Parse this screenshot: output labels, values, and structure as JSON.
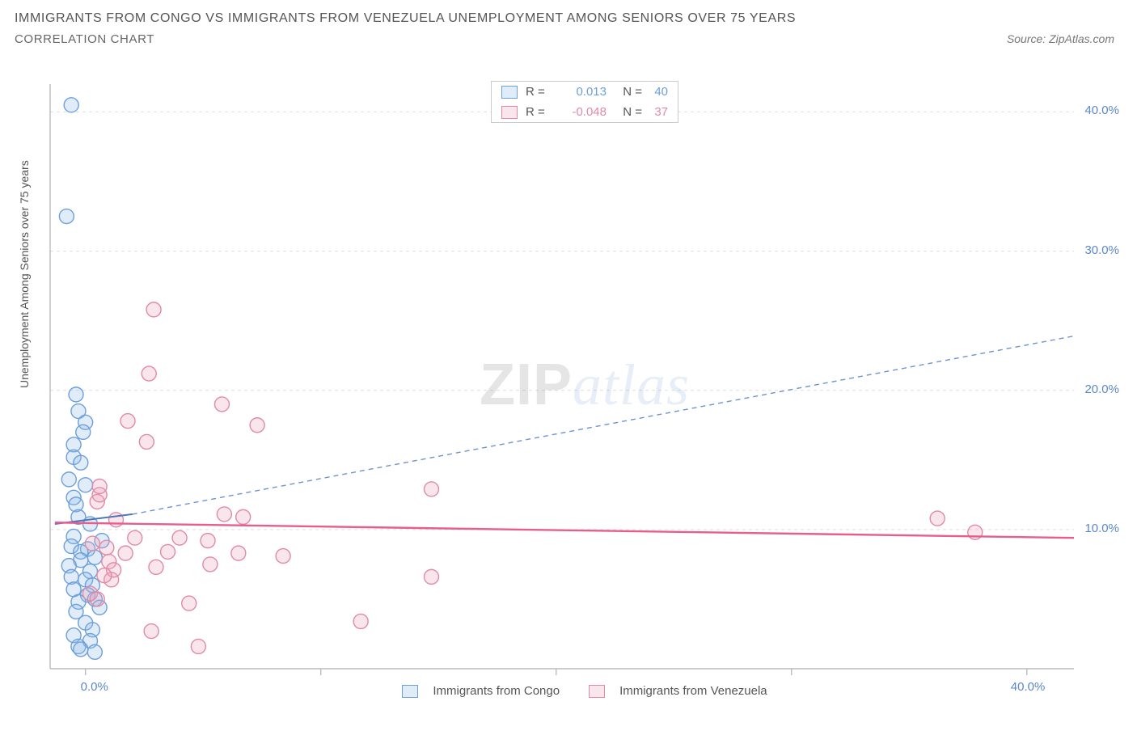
{
  "title_line1": "IMMIGRANTS FROM CONGO VS IMMIGRANTS FROM VENEZUELA UNEMPLOYMENT AMONG SENIORS OVER 75 YEARS",
  "title_line2": "CORRELATION CHART",
  "source_label": "Source: ZipAtlas.com",
  "ylabel": "Unemployment Among Seniors over 75 years",
  "watermark_a": "ZIP",
  "watermark_b": "atlas",
  "chart": {
    "type": "scatter",
    "xlim": [
      -1.5,
      42
    ],
    "ylim": [
      0,
      42
    ],
    "x_ticks": [
      0,
      10,
      20,
      30,
      40
    ],
    "y_ticks": [
      10,
      20,
      30,
      40
    ],
    "x_tick_label_0": "0.0%",
    "x_tick_label_40": "40.0%",
    "y_tick_labels": [
      "10.0%",
      "20.0%",
      "30.0%",
      "40.0%"
    ],
    "grid_color": "#dddddd",
    "axis_color": "#bbbbbb",
    "tick_color": "#bbbbbb",
    "background_color": "#ffffff",
    "ylabel_color": "#555555",
    "xtick_label_color": "#5b88c9",
    "ytick_label_color": "#5b88c9",
    "marker_radius": 9,
    "marker_stroke_width": 1.4,
    "series": [
      {
        "name": "Immigrants from Congo",
        "legend_label": "Immigrants from Congo",
        "color_stroke": "#6d9fdc",
        "color_fill": "rgba(145,185,230,0.28)",
        "R_label": "R =",
        "R_value": "0.013",
        "N_label": "N =",
        "N_value": "40",
        "trend": {
          "x1": -1.3,
          "y1": 10.4,
          "x2": 2.0,
          "y2": 11.1,
          "stroke": "#4b77b8",
          "width": 2.0,
          "dash": ""
        },
        "trend_ext": {
          "x1": 2.0,
          "y1": 11.1,
          "x2": 42,
          "y2": 23.9,
          "stroke": "#6d95c8",
          "width": 1.4,
          "dash": "6 5"
        },
        "points": [
          {
            "x": -0.6,
            "y": 40.5
          },
          {
            "x": -0.8,
            "y": 32.5
          },
          {
            "x": -0.4,
            "y": 19.7
          },
          {
            "x": -0.3,
            "y": 18.5
          },
          {
            "x": 0.0,
            "y": 17.7
          },
          {
            "x": -0.1,
            "y": 17.0
          },
          {
            "x": -0.5,
            "y": 16.1
          },
          {
            "x": -0.5,
            "y": 15.2
          },
          {
            "x": -0.2,
            "y": 14.8
          },
          {
            "x": -0.7,
            "y": 13.6
          },
          {
            "x": 0.0,
            "y": 13.2
          },
          {
            "x": -0.5,
            "y": 12.3
          },
          {
            "x": -0.4,
            "y": 11.8
          },
          {
            "x": -0.3,
            "y": 10.9
          },
          {
            "x": 0.2,
            "y": 10.4
          },
          {
            "x": -0.5,
            "y": 9.5
          },
          {
            "x": 0.7,
            "y": 9.2
          },
          {
            "x": -0.6,
            "y": 8.8
          },
          {
            "x": 0.1,
            "y": 8.6
          },
          {
            "x": -0.2,
            "y": 8.4
          },
          {
            "x": 0.4,
            "y": 8.0
          },
          {
            "x": -0.2,
            "y": 7.8
          },
          {
            "x": -0.7,
            "y": 7.4
          },
          {
            "x": 0.2,
            "y": 7.0
          },
          {
            "x": -0.6,
            "y": 6.6
          },
          {
            "x": 0.0,
            "y": 6.4
          },
          {
            "x": 0.3,
            "y": 6.0
          },
          {
            "x": -0.5,
            "y": 5.7
          },
          {
            "x": 0.1,
            "y": 5.3
          },
          {
            "x": 0.4,
            "y": 5.0
          },
          {
            "x": -0.3,
            "y": 4.8
          },
          {
            "x": 0.6,
            "y": 4.4
          },
          {
            "x": -0.4,
            "y": 4.1
          },
          {
            "x": 0.0,
            "y": 3.3
          },
          {
            "x": 0.3,
            "y": 2.8
          },
          {
            "x": -0.5,
            "y": 2.4
          },
          {
            "x": 0.2,
            "y": 2.0
          },
          {
            "x": -0.3,
            "y": 1.6
          },
          {
            "x": 0.4,
            "y": 1.2
          },
          {
            "x": -0.2,
            "y": 1.4
          }
        ]
      },
      {
        "name": "Immigrants from Venezuela",
        "legend_label": "Immigrants from Venezuela",
        "color_stroke": "#e28aa5",
        "color_fill": "rgba(235,160,185,0.28)",
        "R_label": "R =",
        "R_value": "-0.048",
        "N_label": "N =",
        "N_value": "37",
        "trend": {
          "x1": -1.3,
          "y1": 10.5,
          "x2": 42,
          "y2": 9.4,
          "stroke": "#e75d8e",
          "width": 2.4,
          "dash": ""
        },
        "points": [
          {
            "x": 2.9,
            "y": 25.8
          },
          {
            "x": 2.7,
            "y": 21.2
          },
          {
            "x": 5.8,
            "y": 19.0
          },
          {
            "x": 1.8,
            "y": 17.8
          },
          {
            "x": 7.3,
            "y": 17.5
          },
          {
            "x": 2.6,
            "y": 16.3
          },
          {
            "x": 14.7,
            "y": 12.9
          },
          {
            "x": 36.2,
            "y": 10.8
          },
          {
            "x": 37.8,
            "y": 9.8
          },
          {
            "x": 5.9,
            "y": 11.1
          },
          {
            "x": 6.7,
            "y": 10.9
          },
          {
            "x": 2.1,
            "y": 9.4
          },
          {
            "x": 4.0,
            "y": 9.4
          },
          {
            "x": 5.2,
            "y": 9.2
          },
          {
            "x": 0.9,
            "y": 8.7
          },
          {
            "x": 1.7,
            "y": 8.3
          },
          {
            "x": 3.5,
            "y": 8.4
          },
          {
            "x": 6.5,
            "y": 8.3
          },
          {
            "x": 8.4,
            "y": 8.1
          },
          {
            "x": 5.3,
            "y": 7.5
          },
          {
            "x": 3.0,
            "y": 7.3
          },
          {
            "x": 14.7,
            "y": 6.6
          },
          {
            "x": 1.1,
            "y": 6.4
          },
          {
            "x": 4.4,
            "y": 4.7
          },
          {
            "x": 11.7,
            "y": 3.4
          },
          {
            "x": 2.8,
            "y": 2.7
          },
          {
            "x": 4.8,
            "y": 1.6
          },
          {
            "x": 0.5,
            "y": 12.0
          },
          {
            "x": 0.6,
            "y": 12.5
          },
          {
            "x": 1.0,
            "y": 7.7
          },
          {
            "x": 1.2,
            "y": 7.1
          },
          {
            "x": 1.3,
            "y": 10.7
          },
          {
            "x": 0.3,
            "y": 9.0
          },
          {
            "x": 0.2,
            "y": 5.4
          },
          {
            "x": 0.5,
            "y": 5.0
          },
          {
            "x": 0.6,
            "y": 13.1
          },
          {
            "x": 0.8,
            "y": 6.7
          }
        ]
      }
    ]
  }
}
